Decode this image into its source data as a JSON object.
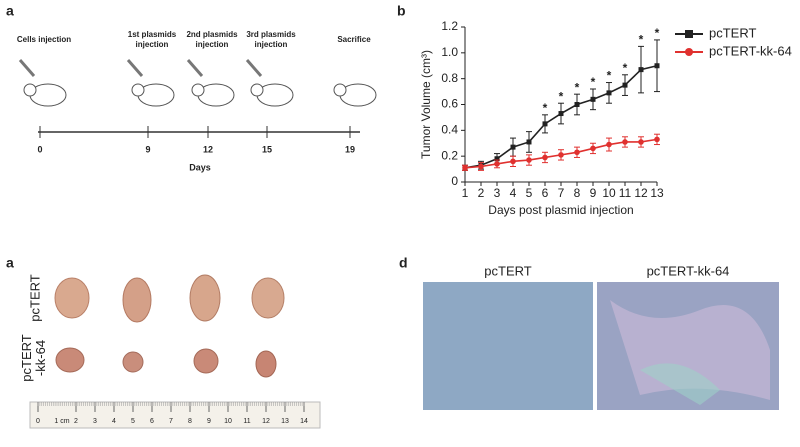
{
  "panel_a": {
    "label": "a",
    "axis_label": "Days",
    "events": [
      {
        "day": "0",
        "text": "Cells injection"
      },
      {
        "day": "9",
        "text": "1st plasmids injection"
      },
      {
        "day": "12",
        "text": "2nd plasmids injection"
      },
      {
        "day": "15",
        "text": "3rd plasmids injection"
      },
      {
        "day": "19",
        "text": "Sacrifice"
      }
    ]
  },
  "panel_b_label": "b",
  "chart_data": {
    "type": "line",
    "xlabel": "Days post plasmid injection",
    "ylabel": "Tumor Volume (cm³)",
    "x": [
      1,
      2,
      3,
      4,
      5,
      6,
      7,
      8,
      9,
      10,
      11,
      12,
      13
    ],
    "xlim": [
      1,
      13
    ],
    "xticks": [
      1,
      2,
      3,
      4,
      5,
      6,
      7,
      8,
      9,
      10,
      11,
      12,
      13
    ],
    "ylim": [
      0,
      1.2
    ],
    "yticks": [
      0,
      0.2,
      0.4,
      0.6,
      0.8,
      {
        "value": 1,
        "label": "1.0"
      },
      1.2
    ],
    "legend": "right",
    "series": [
      {
        "name": "pcTERT",
        "color": "#222222",
        "marker": "square",
        "values": [
          0.11,
          0.13,
          0.18,
          0.27,
          0.31,
          0.45,
          0.53,
          0.6,
          0.64,
          0.69,
          0.75,
          0.87,
          0.9
        ],
        "errors": [
          0.02,
          0.03,
          0.04,
          0.07,
          0.08,
          0.07,
          0.08,
          0.08,
          0.08,
          0.08,
          0.08,
          0.18,
          0.2
        ]
      },
      {
        "name": "pcTERT-kk-64",
        "color": "#e0312f",
        "marker": "circle",
        "values": [
          0.11,
          0.12,
          0.14,
          0.16,
          0.17,
          0.19,
          0.21,
          0.23,
          0.26,
          0.29,
          0.31,
          0.31,
          0.33
        ],
        "errors": [
          0.02,
          0.03,
          0.03,
          0.04,
          0.04,
          0.04,
          0.04,
          0.04,
          0.04,
          0.05,
          0.04,
          0.04,
          0.04
        ]
      }
    ],
    "annotations": [
      null,
      null,
      null,
      null,
      null,
      "*",
      "*",
      "*",
      "*",
      "*",
      "*",
      "*",
      "*"
    ]
  },
  "panel_c": {
    "label": "a",
    "rows": [
      "pcTERT",
      "pcTERT\n-kk-64"
    ],
    "ruler_unit": "1 cm",
    "ruler_numbers": [
      0,
      2,
      3,
      4,
      5,
      6,
      7,
      8,
      9,
      10,
      11,
      12,
      13,
      14
    ]
  },
  "panel_d": {
    "label": "d",
    "titles": [
      "pcTERT",
      "pcTERT-kk-64"
    ]
  }
}
